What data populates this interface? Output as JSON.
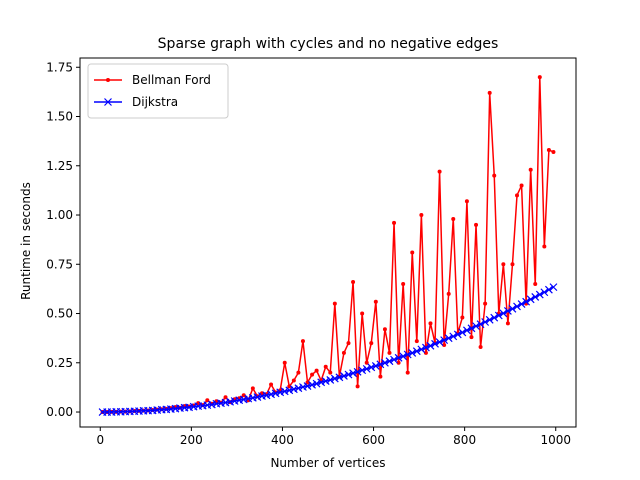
{
  "chart_data": {
    "type": "line",
    "title": "Sparse graph with cycles and no negative edges",
    "x_label": "Number of vertices",
    "y_label": "Runtime in seconds",
    "x": [
      5,
      15,
      25,
      35,
      45,
      55,
      65,
      75,
      85,
      95,
      105,
      115,
      125,
      135,
      145,
      155,
      165,
      175,
      185,
      195,
      205,
      215,
      225,
      235,
      245,
      255,
      265,
      275,
      285,
      295,
      305,
      315,
      325,
      335,
      345,
      355,
      365,
      375,
      385,
      395,
      405,
      415,
      425,
      435,
      445,
      455,
      465,
      475,
      485,
      495,
      505,
      515,
      525,
      535,
      545,
      555,
      565,
      575,
      585,
      595,
      605,
      615,
      625,
      635,
      645,
      655,
      665,
      675,
      685,
      695,
      705,
      715,
      725,
      735,
      745,
      755,
      765,
      775,
      785,
      795,
      805,
      815,
      825,
      835,
      845,
      855,
      865,
      875,
      885,
      895,
      905,
      915,
      925,
      935,
      945,
      955,
      965,
      975,
      985,
      995
    ],
    "series": [
      {
        "name": "Bellman Ford",
        "color": "#ff0000",
        "marker": "dot",
        "values": [
          0.0,
          0.0,
          0.001,
          0.001,
          0.002,
          0.002,
          0.003,
          0.005,
          0.006,
          0.007,
          0.008,
          0.01,
          0.012,
          0.014,
          0.016,
          0.02,
          0.025,
          0.022,
          0.03,
          0.028,
          0.033,
          0.045,
          0.035,
          0.06,
          0.042,
          0.055,
          0.048,
          0.075,
          0.05,
          0.065,
          0.07,
          0.085,
          0.06,
          0.12,
          0.08,
          0.095,
          0.09,
          0.14,
          0.1,
          0.11,
          0.25,
          0.13,
          0.16,
          0.2,
          0.36,
          0.15,
          0.19,
          0.21,
          0.16,
          0.23,
          0.2,
          0.55,
          0.18,
          0.3,
          0.35,
          0.66,
          0.13,
          0.5,
          0.25,
          0.35,
          0.56,
          0.18,
          0.42,
          0.3,
          0.96,
          0.25,
          0.65,
          0.2,
          0.81,
          0.36,
          1.0,
          0.3,
          0.45,
          0.35,
          1.22,
          0.34,
          0.6,
          0.98,
          0.4,
          0.48,
          1.07,
          0.38,
          0.95,
          0.33,
          0.55,
          1.62,
          1.2,
          0.5,
          0.75,
          0.45,
          0.75,
          1.1,
          1.15,
          0.55,
          1.23,
          0.65,
          1.7,
          0.84,
          1.33,
          1.32
        ]
      },
      {
        "name": "Dijkstra",
        "color": "#0000ff",
        "marker": "x",
        "values": [
          0.0,
          0.0,
          0.0,
          0.001,
          0.001,
          0.002,
          0.003,
          0.004,
          0.005,
          0.006,
          0.007,
          0.008,
          0.01,
          0.012,
          0.013,
          0.015,
          0.017,
          0.02,
          0.022,
          0.024,
          0.027,
          0.03,
          0.032,
          0.035,
          0.038,
          0.042,
          0.045,
          0.048,
          0.052,
          0.056,
          0.06,
          0.064,
          0.068,
          0.072,
          0.076,
          0.081,
          0.085,
          0.09,
          0.095,
          0.1,
          0.105,
          0.11,
          0.116,
          0.121,
          0.127,
          0.132,
          0.138,
          0.144,
          0.151,
          0.157,
          0.163,
          0.17,
          0.176,
          0.183,
          0.19,
          0.197,
          0.204,
          0.212,
          0.219,
          0.227,
          0.234,
          0.242,
          0.25,
          0.258,
          0.266,
          0.275,
          0.283,
          0.292,
          0.3,
          0.309,
          0.318,
          0.327,
          0.336,
          0.346,
          0.355,
          0.365,
          0.375,
          0.384,
          0.394,
          0.404,
          0.415,
          0.425,
          0.436,
          0.446,
          0.457,
          0.468,
          0.479,
          0.49,
          0.501,
          0.513,
          0.524,
          0.536,
          0.548,
          0.56,
          0.572,
          0.584,
          0.596,
          0.608,
          0.621,
          0.634
        ]
      }
    ],
    "xlim": [
      -44.5,
      1044.5
    ],
    "xticks": [
      0,
      200,
      400,
      600,
      800,
      1000
    ],
    "ylim": [
      -0.076,
      1.797
    ],
    "yticks": [
      {
        "value": 0,
        "label": "0.00"
      },
      {
        "value": 0.25,
        "label": "0.25"
      },
      {
        "value": 0.5,
        "label": "0.50"
      },
      {
        "value": 0.75,
        "label": "0.75"
      },
      {
        "value": 1,
        "label": "1.00"
      },
      {
        "value": 1.25,
        "label": "1.25"
      },
      {
        "value": 1.5,
        "label": "1.50"
      },
      {
        "value": 1.75,
        "label": "1.75"
      }
    ],
    "legend": "upper left",
    "grid": false
  }
}
